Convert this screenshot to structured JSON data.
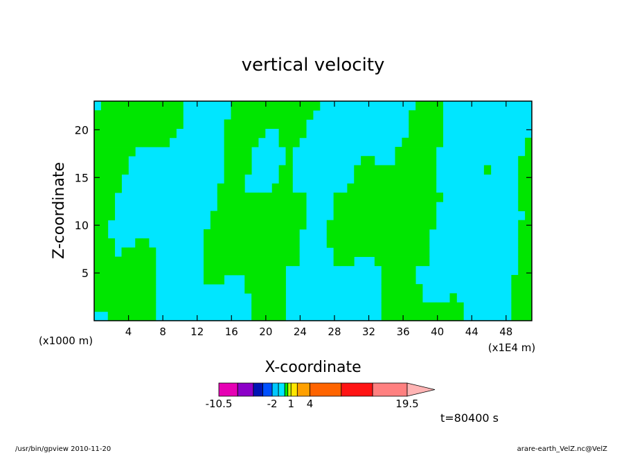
{
  "chart_data": {
    "type": "heatmap",
    "title": "vertical velocity",
    "xlabel": "X-coordinate",
    "ylabel": "Z-coordinate",
    "x_unit_left": "(x1000 m)",
    "x_unit_right": "(x1E4 m)",
    "xlim": [
      0,
      51
    ],
    "ylim": [
      0,
      23
    ],
    "x_ticks": [
      "4",
      "8",
      "12",
      "16",
      "20",
      "24",
      "28",
      "32",
      "36",
      "40",
      "44",
      "48"
    ],
    "y_ticks": [
      "5",
      "10",
      "15",
      "20"
    ],
    "time_label": "t=80400 s",
    "colors": {
      "background_field": "#00e6ff",
      "positive_field": "#00e600"
    },
    "colorbar": {
      "ticks": [
        "-10.5",
        "-2",
        "1",
        "4",
        "19.5"
      ],
      "colors": [
        "#e600b4",
        "#8c00c8",
        "#0014b4",
        "#0050ff",
        "#00c8ff",
        "#00e6ff",
        "#00e600",
        "#c8ff00",
        "#ffe600",
        "#ffa000",
        "#ff6400",
        "#ff1414",
        "#ff8080",
        "#ffb4b4"
      ],
      "boundaries": [
        -10.5,
        -7.5,
        -5,
        -3.5,
        -2,
        -1,
        0,
        0.5,
        1,
        2,
        4,
        9,
        14,
        19.5
      ]
    }
  },
  "footer": {
    "left": "/usr/bin/gpview   2010-11-20",
    "right": "arare-earth_VelZ.nc@VelZ"
  }
}
